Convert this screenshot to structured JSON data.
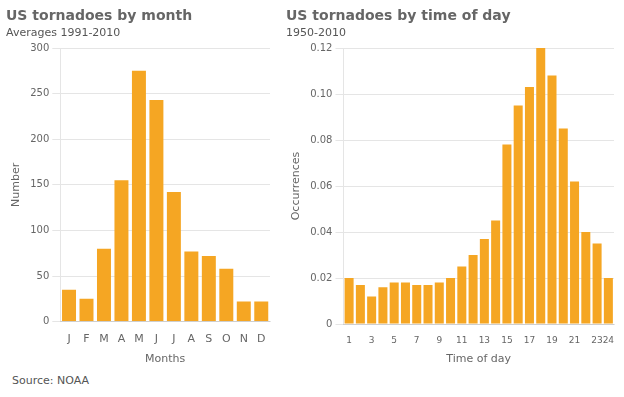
{
  "chart_data": [
    {
      "type": "bar",
      "title": "US tornadoes by month",
      "subtitle": "Averages 1991-2010",
      "ylabel": "Number",
      "xlabel": "Months",
      "categories": [
        "J",
        "F",
        "M",
        "A",
        "M",
        "J",
        "J",
        "A",
        "S",
        "O",
        "N",
        "D"
      ],
      "values": [
        35,
        25,
        80,
        155,
        275,
        243,
        142,
        77,
        72,
        58,
        22,
        22
      ],
      "color": "#F5A623",
      "ylim": [
        0,
        300
      ],
      "yticks": [
        0,
        50,
        100,
        150,
        200,
        250,
        300
      ],
      "grid": true,
      "annotations": [
        "Source: NOAA"
      ]
    },
    {
      "type": "bar",
      "title": "US tornadoes by time of day",
      "subtitle": "1950-2010",
      "ylabel": "Occurrences",
      "xlabel": "Time of day",
      "categories": [
        "1",
        null,
        "3",
        null,
        "5",
        null,
        "7",
        null,
        "9",
        null,
        "11",
        null,
        "13",
        null,
        "15",
        null,
        "17",
        null,
        "19",
        null,
        "21",
        null,
        "23",
        "24"
      ],
      "values": [
        0.02,
        0.017,
        0.012,
        0.016,
        0.018,
        0.018,
        0.017,
        0.017,
        0.018,
        0.02,
        0.025,
        0.03,
        0.037,
        0.045,
        0.078,
        0.095,
        0.103,
        0.12,
        0.108,
        0.085,
        0.062,
        0.04,
        0.035,
        0.02
      ],
      "color": "#F5A623",
      "ylim": [
        0,
        0.12
      ],
      "yticks": [
        0,
        0.02,
        0.04,
        0.06,
        0.08,
        {
          "value": 0.1,
          "label": "0.10"
        },
        0.12
      ],
      "grid": true
    }
  ]
}
